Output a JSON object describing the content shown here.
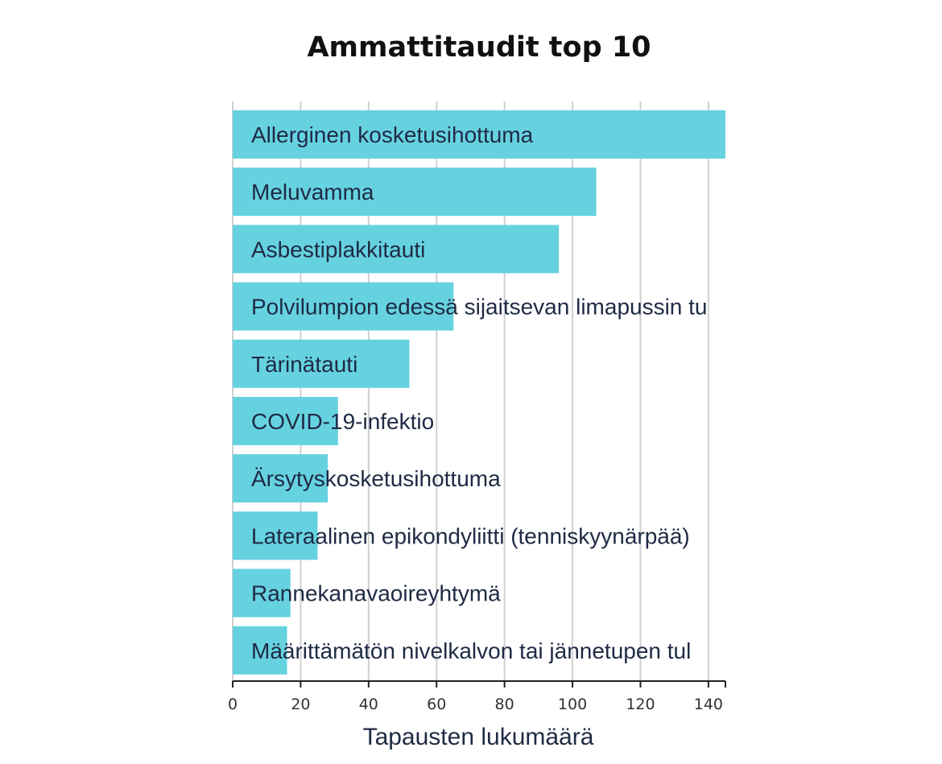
{
  "chart_data": {
    "type": "bar",
    "orientation": "horizontal",
    "title": "Ammattitaudit top 10",
    "xlabel": "Tapausten lukumäärä",
    "ylabel": "",
    "xlim": [
      0,
      145
    ],
    "ticks": [
      0,
      20,
      40,
      60,
      80,
      100,
      120,
      140
    ],
    "grid": true,
    "categories": [
      "Allerginen kosketusihottuma",
      "Meluvamma",
      "Asbestiplakkitauti",
      "Polvilumpion edessä sijaitsevan limapussin tu",
      "Tärinätauti",
      "COVID-19-infektio",
      "Ärsytyskosketusihottuma",
      "Lateraalinen epikondyliitti (tenniskyynärpää)",
      "Rannekanavaoireyhtymä",
      "Määrittämätön nivelkalvon tai jännetupen tul"
    ],
    "values": [
      145,
      107,
      96,
      65,
      52,
      31,
      28,
      25,
      17,
      16
    ],
    "colors": {
      "bar": "#66d2e0"
    }
  }
}
